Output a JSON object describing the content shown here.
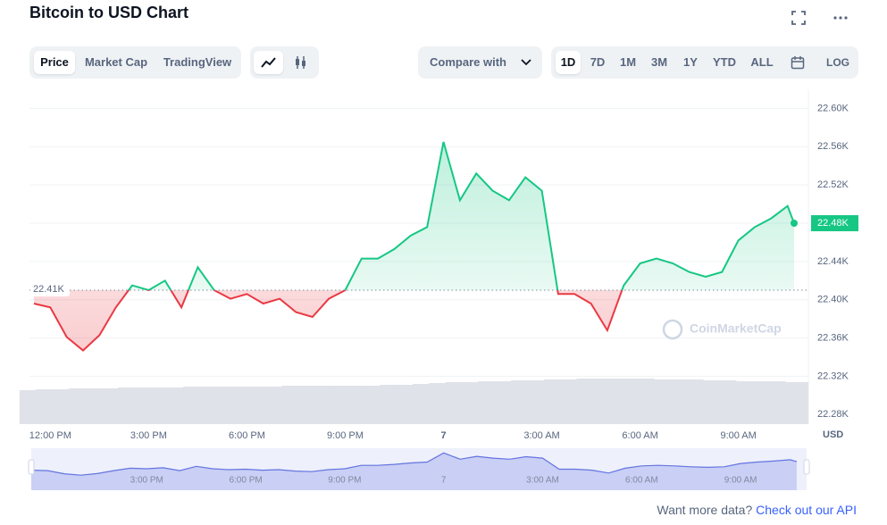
{
  "header": {
    "title": "Bitcoin to USD Chart",
    "tabs": [
      "Price",
      "Market Cap",
      "TradingView"
    ],
    "compare": "Compare with",
    "ranges": [
      "1D",
      "7D",
      "1M",
      "3M",
      "1Y",
      "YTD",
      "ALL"
    ],
    "log": "LOG"
  },
  "chart_data": {
    "type": "line",
    "ylabel": "USD",
    "watermark": "CoinMarketCap",
    "x": [
      -0.5,
      0,
      0.5,
      1,
      1.5,
      2,
      2.5,
      3,
      3.5,
      4,
      4.5,
      5,
      5.5,
      6,
      6.5,
      7,
      7.5,
      8,
      8.5,
      9,
      9.5,
      10,
      10.5,
      11,
      11.5,
      12,
      12.5,
      13,
      13.5,
      14,
      14.5,
      15,
      15.5,
      16,
      16.5,
      17,
      17.5,
      18,
      18.5,
      19,
      19.5,
      20,
      20.5,
      21,
      21.5,
      22,
      22.5,
      22.7
    ],
    "values": [
      22396,
      22392,
      22361,
      22347,
      22363,
      22392,
      22415,
      22410,
      22420,
      22392,
      22434,
      22410,
      22401,
      22406,
      22396,
      22401,
      22387,
      22382,
      22401,
      22410,
      22443,
      22443,
      22453,
      22467,
      22476,
      22565,
      22504,
      22532,
      22514,
      22504,
      22528,
      22514,
      22406,
      22406,
      22396,
      22368,
      22415,
      22438,
      22443,
      22438,
      22429,
      22424,
      22429,
      22462,
      22476,
      22485,
      22498,
      22480
    ],
    "volume": [
      38,
      39,
      39,
      40,
      40,
      40,
      41,
      41,
      41,
      41,
      42,
      42,
      42,
      42,
      42,
      42,
      43,
      43,
      43,
      43,
      43,
      43,
      44,
      44,
      45,
      46,
      47,
      47,
      48,
      48,
      49,
      49,
      50,
      50,
      51,
      51,
      51,
      51,
      50,
      50,
      50,
      49,
      49,
      48,
      48,
      48,
      47,
      47
    ],
    "y2lim": [
      0,
      100
    ],
    "baseline": {
      "value": 22410,
      "label": "22.41K"
    },
    "last": {
      "value": 22480,
      "label": "22.48K"
    },
    "up_color": "#16c784",
    "down_color": "#ea3943",
    "xlim": [
      -0.5,
      23
    ],
    "xticks": [
      {
        "value": 0,
        "label": "12:00 PM"
      },
      {
        "value": 3,
        "label": "3:00 PM"
      },
      {
        "value": 6,
        "label": "6:00 PM"
      },
      {
        "value": 9,
        "label": "9:00 PM"
      },
      {
        "value": 12,
        "label": "7"
      },
      {
        "value": 15,
        "label": "3:00 AM"
      },
      {
        "value": 18,
        "label": "6:00 AM"
      },
      {
        "value": 21,
        "label": "9:00 AM"
      }
    ],
    "ylim": [
      22270,
      22620
    ],
    "yticks": [
      {
        "value": 22600,
        "label": "22.60K"
      },
      {
        "value": 22560,
        "label": "22.56K"
      },
      {
        "value": 22520,
        "label": "22.52K"
      },
      {
        "value": 22480,
        "label": "22.48K"
      },
      {
        "value": 22440,
        "label": "22.44K"
      },
      {
        "value": 22400,
        "label": "22.40K"
      },
      {
        "value": 22360,
        "label": "22.36K"
      },
      {
        "value": 22320,
        "label": "22.32K"
      },
      {
        "value": 22280,
        "label": "22.28K"
      }
    ],
    "grid": true
  },
  "footer": {
    "text": "Want more data?",
    "link": "Check out our API"
  }
}
